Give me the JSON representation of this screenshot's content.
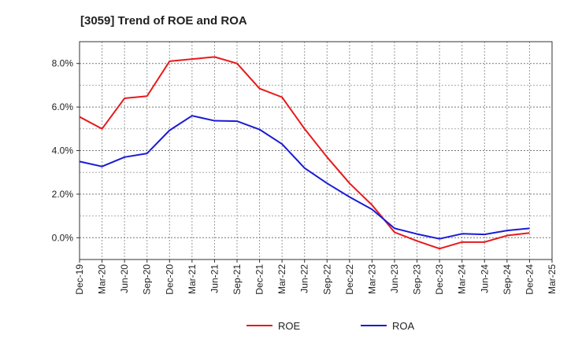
{
  "chart_data": {
    "type": "line",
    "title": "[3059]  Trend of ROE and ROA",
    "xlabel": "",
    "ylabel": "",
    "x": [
      "Dec-19",
      "Mar-20",
      "Jun-20",
      "Sep-20",
      "Dec-20",
      "Mar-21",
      "Jun-21",
      "Sep-21",
      "Dec-21",
      "Mar-22",
      "Jun-22",
      "Sep-22",
      "Dec-22",
      "Mar-23",
      "Jun-23",
      "Sep-23",
      "Dec-23",
      "Mar-24",
      "Jun-24",
      "Sep-24",
      "Dec-24",
      "Mar-25"
    ],
    "ylim": [
      -1.0,
      9.0
    ],
    "yticks": [
      0,
      2,
      4,
      6,
      8
    ],
    "ytick_labels": [
      "0.0%",
      "2.0%",
      "4.0%",
      "6.0%",
      "8.0%"
    ],
    "grid": true,
    "legend_position": "bottom-center",
    "series": [
      {
        "name": "ROE",
        "color": "#e8191b",
        "values": [
          5.55,
          5.0,
          6.4,
          6.5,
          8.1,
          8.2,
          8.3,
          8.0,
          6.85,
          6.45,
          5.0,
          3.7,
          2.5,
          1.5,
          0.25,
          -0.15,
          -0.5,
          -0.2,
          -0.2,
          0.1,
          0.22,
          null
        ]
      },
      {
        "name": "ROA",
        "color": "#1a1ad6",
        "values": [
          3.5,
          3.27,
          3.7,
          3.87,
          4.93,
          5.6,
          5.37,
          5.35,
          4.97,
          4.3,
          3.2,
          2.5,
          1.87,
          1.3,
          0.43,
          0.17,
          -0.05,
          0.18,
          0.15,
          0.33,
          0.43,
          null
        ]
      }
    ]
  }
}
